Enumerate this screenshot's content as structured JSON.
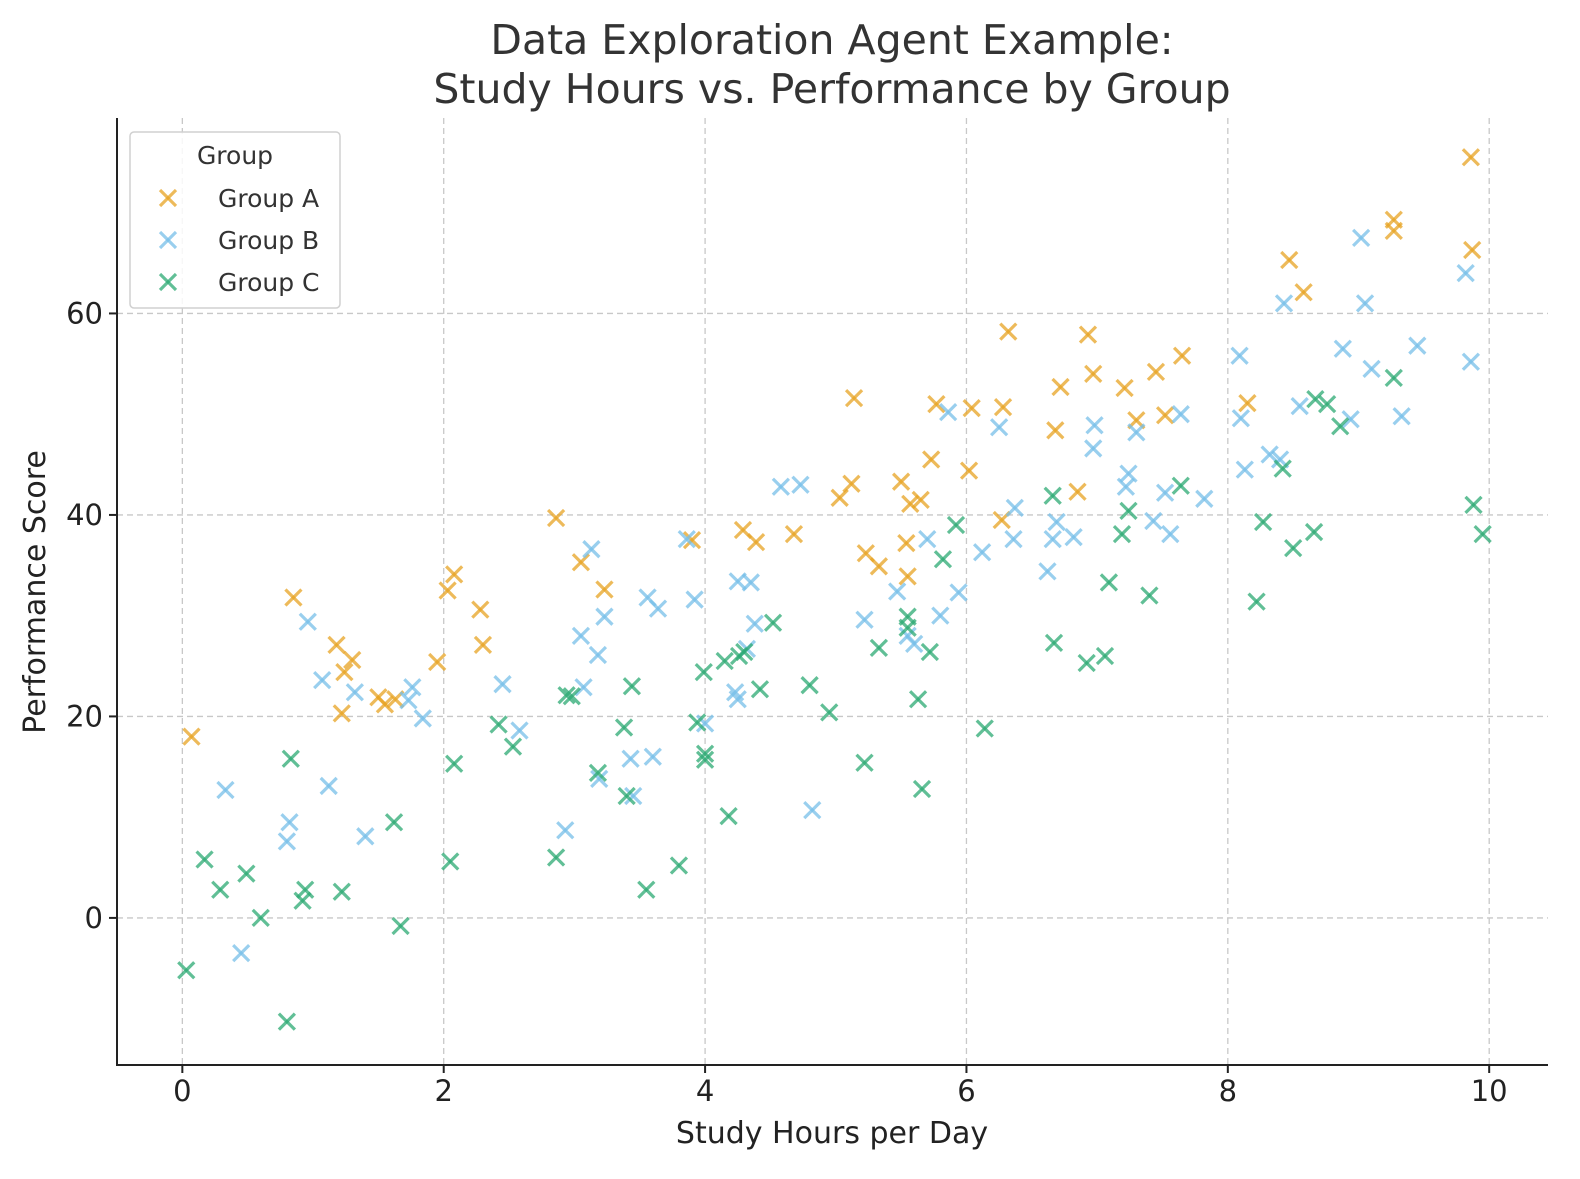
{
  "chart_data": {
    "type": "scatter",
    "title": "Data Exploration Agent Example:",
    "subtitle": "Study Hours vs. Performance by Group",
    "xlabel": "Study Hours per Day",
    "ylabel": "Performance Score",
    "xlim": [
      -0.5,
      10.45
    ],
    "ylim": [
      -14.6,
      79.4
    ],
    "xticks": [
      "0",
      "2",
      "4",
      "6",
      "8",
      "10"
    ],
    "yticks": [
      "0",
      "20",
      "40",
      "60"
    ],
    "xtick_values": [
      0,
      2,
      4,
      6,
      8,
      10
    ],
    "ytick_values": [
      0,
      20,
      40,
      60
    ],
    "grid": true,
    "legend_title": "Group",
    "legend_placement": "top-left",
    "marker": "x",
    "series": [
      {
        "name": "Group A",
        "color": "#E8A423",
        "points": [
          [
            0.07,
            18.0
          ],
          [
            0.85,
            31.8
          ],
          [
            1.18,
            27.1
          ],
          [
            1.22,
            20.3
          ],
          [
            1.24,
            24.4
          ],
          [
            1.3,
            25.6
          ],
          [
            1.5,
            21.9
          ],
          [
            1.55,
            21.2
          ],
          [
            1.63,
            21.7
          ],
          [
            1.95,
            25.4
          ],
          [
            2.03,
            32.5
          ],
          [
            2.08,
            34.1
          ],
          [
            2.28,
            30.6
          ],
          [
            2.3,
            27.1
          ],
          [
            2.86,
            39.7
          ],
          [
            3.05,
            35.3
          ],
          [
            3.23,
            32.6
          ],
          [
            3.9,
            37.5
          ],
          [
            4.29,
            38.5
          ],
          [
            4.39,
            37.3
          ],
          [
            4.68,
            38.1
          ],
          [
            5.03,
            41.7
          ],
          [
            5.12,
            43.1
          ],
          [
            5.14,
            51.6
          ],
          [
            5.23,
            36.2
          ],
          [
            5.33,
            34.9
          ],
          [
            5.5,
            43.3
          ],
          [
            5.54,
            37.2
          ],
          [
            5.55,
            33.9
          ],
          [
            5.57,
            41.1
          ],
          [
            5.65,
            41.5
          ],
          [
            5.73,
            45.5
          ],
          [
            5.77,
            51.0
          ],
          [
            6.02,
            44.4
          ],
          [
            6.04,
            50.6
          ],
          [
            6.27,
            39.5
          ],
          [
            6.28,
            50.7
          ],
          [
            6.32,
            58.2
          ],
          [
            6.68,
            48.4
          ],
          [
            6.72,
            52.7
          ],
          [
            6.85,
            42.3
          ],
          [
            6.93,
            57.9
          ],
          [
            6.97,
            54.0
          ],
          [
            7.21,
            52.6
          ],
          [
            7.3,
            49.4
          ],
          [
            7.45,
            54.2
          ],
          [
            7.52,
            49.9
          ],
          [
            7.65,
            55.8
          ],
          [
            8.15,
            51.1
          ],
          [
            8.47,
            65.3
          ],
          [
            8.58,
            62.1
          ],
          [
            9.27,
            69.3
          ],
          [
            9.27,
            68.2
          ],
          [
            9.86,
            75.5
          ],
          [
            9.87,
            66.3
          ]
        ]
      },
      {
        "name": "Group B",
        "color": "#77BFE9",
        "points": [
          [
            0.33,
            12.7
          ],
          [
            0.45,
            -3.5
          ],
          [
            0.8,
            7.6
          ],
          [
            0.82,
            9.5
          ],
          [
            0.96,
            29.4
          ],
          [
            1.07,
            23.6
          ],
          [
            1.12,
            13.1
          ],
          [
            1.32,
            22.4
          ],
          [
            1.4,
            8.1
          ],
          [
            1.73,
            21.6
          ],
          [
            1.76,
            22.9
          ],
          [
            1.84,
            19.8
          ],
          [
            2.45,
            23.2
          ],
          [
            2.58,
            18.6
          ],
          [
            2.93,
            8.7
          ],
          [
            3.05,
            28.0
          ],
          [
            3.07,
            22.9
          ],
          [
            3.13,
            36.6
          ],
          [
            3.18,
            26.1
          ],
          [
            3.19,
            13.8
          ],
          [
            3.23,
            29.9
          ],
          [
            3.43,
            15.8
          ],
          [
            3.45,
            12.1
          ],
          [
            3.56,
            31.8
          ],
          [
            3.6,
            16.0
          ],
          [
            3.64,
            30.7
          ],
          [
            3.86,
            37.6
          ],
          [
            3.92,
            31.6
          ],
          [
            4.0,
            19.3
          ],
          [
            4.23,
            22.4
          ],
          [
            4.25,
            21.7
          ],
          [
            4.25,
            33.4
          ],
          [
            4.32,
            26.7
          ],
          [
            4.35,
            33.3
          ],
          [
            4.38,
            29.2
          ],
          [
            4.58,
            42.8
          ],
          [
            4.73,
            43.0
          ],
          [
            4.82,
            10.7
          ],
          [
            5.22,
            29.6
          ],
          [
            5.47,
            32.4
          ],
          [
            5.55,
            28.0
          ],
          [
            5.6,
            27.2
          ],
          [
            5.7,
            37.6
          ],
          [
            5.8,
            30.0
          ],
          [
            5.86,
            50.2
          ],
          [
            5.94,
            32.3
          ],
          [
            6.12,
            36.3
          ],
          [
            6.25,
            48.7
          ],
          [
            6.36,
            37.6
          ],
          [
            6.37,
            40.7
          ],
          [
            6.62,
            34.4
          ],
          [
            6.66,
            37.6
          ],
          [
            6.69,
            39.3
          ],
          [
            6.82,
            37.8
          ],
          [
            6.97,
            46.6
          ],
          [
            6.98,
            48.9
          ],
          [
            7.22,
            42.8
          ],
          [
            7.24,
            44.1
          ],
          [
            7.3,
            48.2
          ],
          [
            7.43,
            39.4
          ],
          [
            7.52,
            42.2
          ],
          [
            7.56,
            38.1
          ],
          [
            7.64,
            50.0
          ],
          [
            7.82,
            41.6
          ],
          [
            8.09,
            55.8
          ],
          [
            8.1,
            49.6
          ],
          [
            8.13,
            44.5
          ],
          [
            8.32,
            46.0
          ],
          [
            8.4,
            45.5
          ],
          [
            8.43,
            61.0
          ],
          [
            8.55,
            50.8
          ],
          [
            8.88,
            56.5
          ],
          [
            8.94,
            49.5
          ],
          [
            9.02,
            67.5
          ],
          [
            9.05,
            61.0
          ],
          [
            9.1,
            54.5
          ],
          [
            9.33,
            49.8
          ],
          [
            9.45,
            56.8
          ],
          [
            9.82,
            64.0
          ],
          [
            9.86,
            55.2
          ]
        ]
      },
      {
        "name": "Group C",
        "color": "#2DAA74",
        "points": [
          [
            0.03,
            -5.2
          ],
          [
            0.17,
            5.8
          ],
          [
            0.29,
            2.8
          ],
          [
            0.49,
            4.4
          ],
          [
            0.6,
            0.0
          ],
          [
            0.8,
            -10.3
          ],
          [
            0.83,
            15.8
          ],
          [
            0.92,
            1.7
          ],
          [
            0.94,
            2.8
          ],
          [
            1.22,
            2.6
          ],
          [
            1.62,
            9.5
          ],
          [
            1.67,
            -0.8
          ],
          [
            2.05,
            5.6
          ],
          [
            2.08,
            15.3
          ],
          [
            2.42,
            19.2
          ],
          [
            2.53,
            17.0
          ],
          [
            2.86,
            6.0
          ],
          [
            2.94,
            22.1
          ],
          [
            2.98,
            22.0
          ],
          [
            3.18,
            14.4
          ],
          [
            3.38,
            18.9
          ],
          [
            3.4,
            12.1
          ],
          [
            3.44,
            23.0
          ],
          [
            3.55,
            2.8
          ],
          [
            3.8,
            5.2
          ],
          [
            3.94,
            19.4
          ],
          [
            3.99,
            24.4
          ],
          [
            4.0,
            16.3
          ],
          [
            4.0,
            15.7
          ],
          [
            4.15,
            25.5
          ],
          [
            4.18,
            10.1
          ],
          [
            4.26,
            26.0
          ],
          [
            4.3,
            26.4
          ],
          [
            4.42,
            22.7
          ],
          [
            4.52,
            29.3
          ],
          [
            4.8,
            23.1
          ],
          [
            4.95,
            20.4
          ],
          [
            5.22,
            15.4
          ],
          [
            5.33,
            26.8
          ],
          [
            5.55,
            29.9
          ],
          [
            5.55,
            28.8
          ],
          [
            5.63,
            21.7
          ],
          [
            5.66,
            12.8
          ],
          [
            5.72,
            26.4
          ],
          [
            5.82,
            35.6
          ],
          [
            5.92,
            39.0
          ],
          [
            6.14,
            18.8
          ],
          [
            6.66,
            41.9
          ],
          [
            6.67,
            27.3
          ],
          [
            6.92,
            25.3
          ],
          [
            7.06,
            26.0
          ],
          [
            7.09,
            33.3
          ],
          [
            7.19,
            38.1
          ],
          [
            7.24,
            40.4
          ],
          [
            7.4,
            32.0
          ],
          [
            7.64,
            42.9
          ],
          [
            8.22,
            31.4
          ],
          [
            8.27,
            39.3
          ],
          [
            8.42,
            44.6
          ],
          [
            8.5,
            36.7
          ],
          [
            8.66,
            38.3
          ],
          [
            8.67,
            51.5
          ],
          [
            8.76,
            51.0
          ],
          [
            8.86,
            48.8
          ],
          [
            9.27,
            53.6
          ],
          [
            9.88,
            41.0
          ],
          [
            9.95,
            38.1
          ]
        ]
      }
    ]
  }
}
